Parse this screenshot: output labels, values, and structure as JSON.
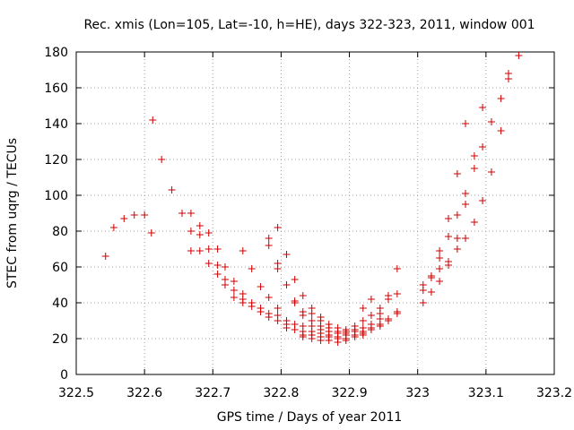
{
  "chart_data": {
    "type": "scatter",
    "title": "Rec. xmis (Lon=105, Lat=-10, h=HE), days 322-323, 2011, window 001",
    "xlabel": "GPS time / Days of year 2011",
    "ylabel": "STEC from uqrg / TECUs",
    "xlim": [
      322.5,
      323.2
    ],
    "ylim": [
      0,
      180
    ],
    "xticks": [
      322.5,
      322.6,
      322.7,
      322.8,
      322.9,
      323,
      323.1,
      323.2
    ],
    "xtick_labels": [
      "322.5",
      "322.6",
      "322.7",
      "322.8",
      "322.9",
      "323",
      "323.1",
      "323.2"
    ],
    "yticks": [
      0,
      20,
      40,
      60,
      80,
      100,
      120,
      140,
      160,
      180
    ],
    "ytick_labels": [
      "0",
      "20",
      "40",
      "60",
      "80",
      "100",
      "120",
      "140",
      "160",
      "180"
    ],
    "grid": true,
    "marker": "+",
    "color": "#cc0000",
    "series": [
      {
        "name": "STEC",
        "points": [
          [
            322.543,
            66
          ],
          [
            322.555,
            82
          ],
          [
            322.57,
            87
          ],
          [
            322.585,
            89
          ],
          [
            322.6,
            89
          ],
          [
            322.612,
            142
          ],
          [
            322.61,
            79
          ],
          [
            322.625,
            120
          ],
          [
            322.64,
            103
          ],
          [
            322.655,
            90
          ],
          [
            322.668,
            90
          ],
          [
            322.668,
            80
          ],
          [
            322.668,
            69
          ],
          [
            322.681,
            83
          ],
          [
            322.681,
            78
          ],
          [
            322.681,
            69
          ],
          [
            322.694,
            79
          ],
          [
            322.694,
            70
          ],
          [
            322.694,
            62
          ],
          [
            322.707,
            70
          ],
          [
            322.707,
            61
          ],
          [
            322.707,
            56
          ],
          [
            322.718,
            60
          ],
          [
            322.718,
            53
          ],
          [
            322.718,
            50
          ],
          [
            322.731,
            52
          ],
          [
            322.731,
            47
          ],
          [
            322.731,
            43
          ],
          [
            322.744,
            69
          ],
          [
            322.744,
            45
          ],
          [
            322.744,
            42
          ],
          [
            322.744,
            40
          ],
          [
            322.757,
            59
          ],
          [
            322.757,
            40
          ],
          [
            322.757,
            38
          ],
          [
            322.77,
            49
          ],
          [
            322.77,
            37
          ],
          [
            322.77,
            35
          ],
          [
            322.782,
            76
          ],
          [
            322.782,
            72
          ],
          [
            322.782,
            43
          ],
          [
            322.782,
            34
          ],
          [
            322.782,
            32
          ],
          [
            322.795,
            82
          ],
          [
            322.795,
            62
          ],
          [
            322.795,
            59
          ],
          [
            322.795,
            37
          ],
          [
            322.795,
            33
          ],
          [
            322.795,
            30
          ],
          [
            322.808,
            67
          ],
          [
            322.808,
            50
          ],
          [
            322.808,
            30
          ],
          [
            322.808,
            28
          ],
          [
            322.808,
            26
          ],
          [
            322.82,
            53
          ],
          [
            322.82,
            41
          ],
          [
            322.82,
            40
          ],
          [
            322.82,
            28
          ],
          [
            322.82,
            25
          ],
          [
            322.832,
            44
          ],
          [
            322.832,
            35
          ],
          [
            322.832,
            33
          ],
          [
            322.832,
            27
          ],
          [
            322.832,
            24
          ],
          [
            322.832,
            22
          ],
          [
            322.832,
            21
          ],
          [
            322.845,
            37
          ],
          [
            322.845,
            34
          ],
          [
            322.845,
            30
          ],
          [
            322.845,
            27
          ],
          [
            322.845,
            24
          ],
          [
            322.845,
            22
          ],
          [
            322.845,
            20
          ],
          [
            322.858,
            32
          ],
          [
            322.858,
            30
          ],
          [
            322.858,
            27
          ],
          [
            322.858,
            25
          ],
          [
            322.858,
            23
          ],
          [
            322.858,
            21
          ],
          [
            322.858,
            19
          ],
          [
            322.87,
            28
          ],
          [
            322.87,
            26
          ],
          [
            322.87,
            24
          ],
          [
            322.87,
            22
          ],
          [
            322.87,
            21
          ],
          [
            322.87,
            19
          ],
          [
            322.883,
            26
          ],
          [
            322.883,
            24
          ],
          [
            322.883,
            23
          ],
          [
            322.883,
            21
          ],
          [
            322.883,
            20
          ],
          [
            322.883,
            18
          ],
          [
            322.895,
            25
          ],
          [
            322.895,
            24
          ],
          [
            322.895,
            23
          ],
          [
            322.895,
            22
          ],
          [
            322.895,
            20
          ],
          [
            322.895,
            19
          ],
          [
            322.908,
            27
          ],
          [
            322.908,
            25
          ],
          [
            322.908,
            24
          ],
          [
            322.908,
            22
          ],
          [
            322.908,
            21
          ],
          [
            322.92,
            37
          ],
          [
            322.92,
            30
          ],
          [
            322.92,
            26
          ],
          [
            322.92,
            24
          ],
          [
            322.92,
            23
          ],
          [
            322.92,
            22
          ],
          [
            322.932,
            42
          ],
          [
            322.932,
            33
          ],
          [
            322.932,
            28
          ],
          [
            322.932,
            26
          ],
          [
            322.932,
            25
          ],
          [
            322.945,
            37
          ],
          [
            322.945,
            34
          ],
          [
            322.945,
            31
          ],
          [
            322.945,
            28
          ],
          [
            322.945,
            27
          ],
          [
            322.957,
            44
          ],
          [
            322.957,
            42
          ],
          [
            322.957,
            31
          ],
          [
            322.957,
            30
          ],
          [
            322.97,
            59
          ],
          [
            322.97,
            45
          ],
          [
            322.97,
            35
          ],
          [
            322.97,
            34
          ],
          [
            323.008,
            50
          ],
          [
            323.008,
            47
          ],
          [
            323.008,
            40
          ],
          [
            323.02,
            55
          ],
          [
            323.02,
            54
          ],
          [
            323.02,
            46
          ],
          [
            323.032,
            69
          ],
          [
            323.032,
            65
          ],
          [
            323.032,
            59
          ],
          [
            323.032,
            52
          ],
          [
            323.045,
            87
          ],
          [
            323.045,
            77
          ],
          [
            323.045,
            63
          ],
          [
            323.045,
            61
          ],
          [
            323.058,
            112
          ],
          [
            323.058,
            89
          ],
          [
            323.058,
            76
          ],
          [
            323.058,
            70
          ],
          [
            323.07,
            140
          ],
          [
            323.07,
            101
          ],
          [
            323.07,
            95
          ],
          [
            323.07,
            76
          ],
          [
            323.083,
            122
          ],
          [
            323.083,
            115
          ],
          [
            323.083,
            85
          ],
          [
            323.095,
            149
          ],
          [
            323.095,
            127
          ],
          [
            323.095,
            97
          ],
          [
            323.108,
            141
          ],
          [
            323.108,
            113
          ],
          [
            323.122,
            154
          ],
          [
            323.122,
            136
          ],
          [
            323.133,
            168
          ],
          [
            323.133,
            165
          ],
          [
            323.148,
            178
          ]
        ]
      }
    ]
  }
}
